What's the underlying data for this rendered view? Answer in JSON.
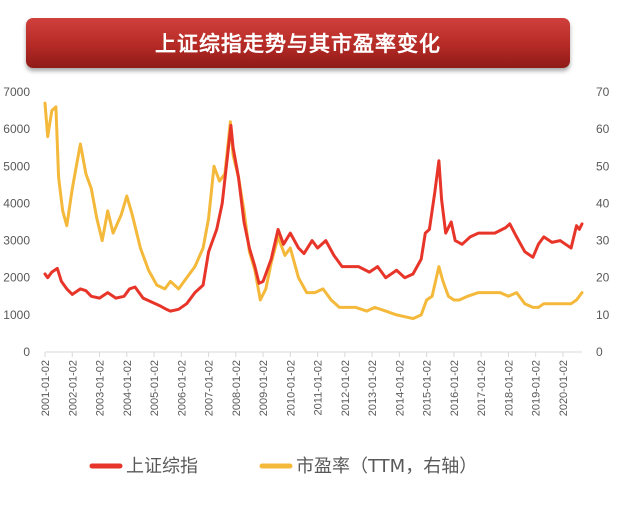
{
  "header": {
    "title": "上证综指走势与其市盈率变化"
  },
  "chart_data": {
    "type": "line",
    "title": "上证综指走势与其市盈率变化",
    "xlabel": "",
    "ylabel": "",
    "x_ticks": [
      "2001-01-02",
      "2002-01-02",
      "2003-01-02",
      "2004-01-02",
      "2005-01-02",
      "2006-01-02",
      "2007-01-02",
      "2008-01-02",
      "2009-01-02",
      "2010-01-02",
      "2011-01-02",
      "2012-01-02",
      "2013-01-02",
      "2014-01-02",
      "2015-01-02",
      "2016-01-02",
      "2017-01-02",
      "2018-01-02",
      "2019-01-02",
      "2020-01-02"
    ],
    "xlim": [
      2001.0,
      2020.7
    ],
    "y_left": {
      "ylim": [
        0,
        7000
      ],
      "ticks": [
        "0",
        "1000",
        "2000",
        "3000",
        "4000",
        "5000",
        "6000",
        "7000"
      ]
    },
    "y_right": {
      "ylim": [
        0,
        70
      ],
      "ticks": [
        "0",
        "10",
        "20",
        "30",
        "40",
        "50",
        "60",
        "70"
      ]
    },
    "legend_position": "bottom",
    "grid": false,
    "series": [
      {
        "name": "上证综指",
        "axis": "left",
        "color": "#e8352a",
        "x": [
          2001.0,
          2001.1,
          2001.25,
          2001.45,
          2001.6,
          2001.8,
          2002.0,
          2002.3,
          2002.5,
          2002.7,
          2003.0,
          2003.3,
          2003.6,
          2003.9,
          2004.1,
          2004.3,
          2004.6,
          2004.9,
          2005.2,
          2005.45,
          2005.6,
          2005.9,
          2006.2,
          2006.5,
          2006.8,
          2007.0,
          2007.3,
          2007.5,
          2007.7,
          2007.82,
          2007.9,
          2008.1,
          2008.3,
          2008.5,
          2008.7,
          2008.85,
          2009.0,
          2009.3,
          2009.55,
          2009.75,
          2010.0,
          2010.3,
          2010.5,
          2010.8,
          2011.0,
          2011.3,
          2011.6,
          2011.9,
          2012.2,
          2012.5,
          2012.9,
          2013.2,
          2013.5,
          2013.9,
          2014.2,
          2014.5,
          2014.8,
          2014.95,
          2015.1,
          2015.3,
          2015.45,
          2015.55,
          2015.7,
          2015.9,
          2016.05,
          2016.3,
          2016.6,
          2016.9,
          2017.2,
          2017.5,
          2017.9,
          2018.05,
          2018.3,
          2018.6,
          2018.9,
          2019.1,
          2019.3,
          2019.6,
          2019.9,
          2020.1,
          2020.3,
          2020.5,
          2020.6,
          2020.7
        ],
        "values": [
          2100,
          2000,
          2150,
          2250,
          1900,
          1700,
          1550,
          1700,
          1650,
          1500,
          1450,
          1600,
          1450,
          1500,
          1700,
          1750,
          1450,
          1350,
          1250,
          1150,
          1100,
          1150,
          1300,
          1600,
          1800,
          2700,
          3300,
          4000,
          5300,
          6100,
          5500,
          4700,
          3500,
          2800,
          2300,
          1850,
          1900,
          2500,
          3300,
          2900,
          3200,
          2800,
          2650,
          3000,
          2800,
          3000,
          2600,
          2300,
          2300,
          2300,
          2150,
          2300,
          2000,
          2200,
          2000,
          2100,
          2500,
          3200,
          3300,
          4300,
          5150,
          4100,
          3200,
          3500,
          3000,
          2900,
          3100,
          3200,
          3200,
          3200,
          3350,
          3450,
          3100,
          2700,
          2550,
          2900,
          3100,
          2950,
          3000,
          2900,
          2800,
          3400,
          3300,
          3450
        ]
      },
      {
        "name": "市盈率（TTM，右轴）",
        "axis": "right",
        "color": "#f4b93b",
        "x": [
          2001.0,
          2001.1,
          2001.25,
          2001.4,
          2001.5,
          2001.65,
          2001.8,
          2002.0,
          2002.15,
          2002.3,
          2002.5,
          2002.7,
          2002.9,
          2003.1,
          2003.3,
          2003.5,
          2003.8,
          2004.0,
          2004.2,
          2004.5,
          2004.8,
          2005.1,
          2005.4,
          2005.6,
          2005.9,
          2006.2,
          2006.5,
          2006.8,
          2007.0,
          2007.2,
          2007.4,
          2007.6,
          2007.8,
          2007.9,
          2008.1,
          2008.3,
          2008.5,
          2008.7,
          2008.9,
          2009.1,
          2009.3,
          2009.55,
          2009.8,
          2010.0,
          2010.3,
          2010.6,
          2010.9,
          2011.2,
          2011.5,
          2011.8,
          2012.1,
          2012.4,
          2012.8,
          2013.1,
          2013.5,
          2013.9,
          2014.2,
          2014.5,
          2014.8,
          2015.0,
          2015.2,
          2015.45,
          2015.6,
          2015.8,
          2016.0,
          2016.2,
          2016.5,
          2016.9,
          2017.3,
          2017.7,
          2018.0,
          2018.3,
          2018.6,
          2018.9,
          2019.1,
          2019.3,
          2019.7,
          2020.0,
          2020.3,
          2020.5,
          2020.7
        ],
        "values": [
          67,
          58,
          65,
          66,
          47,
          38,
          34,
          44,
          50,
          56,
          48,
          44,
          36,
          30,
          38,
          32,
          37,
          42,
          37,
          28,
          22,
          18,
          17,
          19,
          17,
          20,
          23,
          28,
          36,
          50,
          46,
          48,
          62,
          53,
          47,
          38,
          27,
          22,
          14,
          17,
          24,
          31,
          26,
          28,
          20,
          16,
          16,
          17,
          14,
          12,
          12,
          12,
          11,
          12,
          11,
          10,
          9.5,
          9,
          10,
          14,
          15,
          23,
          19,
          15,
          14,
          14,
          15,
          16,
          16,
          16,
          15,
          16,
          13,
          12,
          12,
          13,
          13,
          13,
          13,
          14,
          16
        ]
      }
    ]
  },
  "legend": {
    "items": [
      {
        "label": "上证综指",
        "color": "#e8352a"
      },
      {
        "label": "市盈率（TTM，右轴）",
        "color": "#f4b93b"
      }
    ]
  }
}
